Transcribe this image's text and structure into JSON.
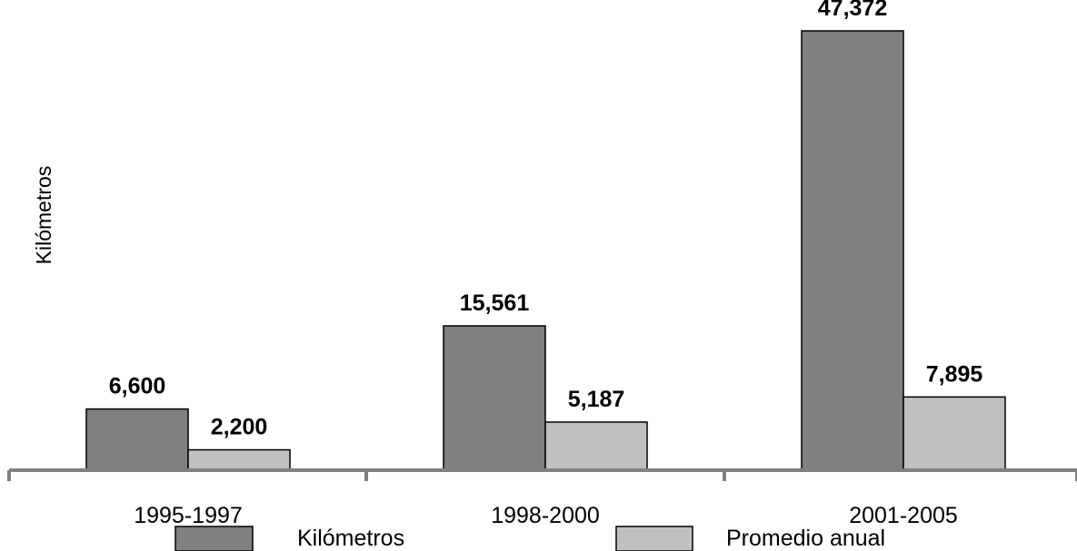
{
  "chart_data": {
    "type": "bar",
    "categories": [
      "1995-1997",
      "1998-2000",
      "2001-2005"
    ],
    "series": [
      {
        "name": "Kilómetros",
        "values": [
          6600,
          15561,
          47372
        ],
        "labels": [
          "6,600",
          "15,561",
          "47,372"
        ],
        "color": "#808080"
      },
      {
        "name": "Promedio anual",
        "values": [
          2200,
          5187,
          7895
        ],
        "labels": [
          "2,200",
          "5,187",
          "7,895"
        ],
        "color": "#c0c0c0"
      }
    ],
    "ylabel": "Kilómetros",
    "xlabel": "",
    "ylim": [
      0,
      47372
    ],
    "grid": false,
    "legend": "bottom",
    "axis_color": "#808080"
  }
}
